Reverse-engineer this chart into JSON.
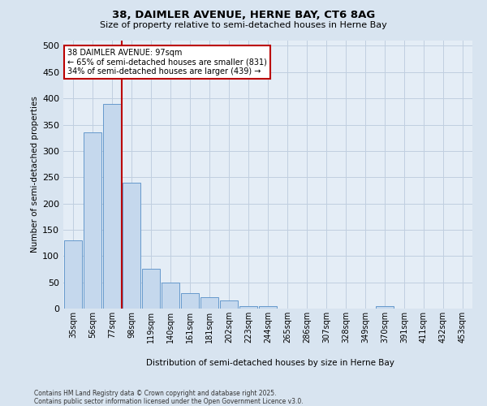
{
  "title_line1": "38, DAIMLER AVENUE, HERNE BAY, CT6 8AG",
  "title_line2": "Size of property relative to semi-detached houses in Herne Bay",
  "xlabel": "Distribution of semi-detached houses by size in Herne Bay",
  "ylabel": "Number of semi-detached properties",
  "footnote": "Contains HM Land Registry data © Crown copyright and database right 2025.\nContains public sector information licensed under the Open Government Licence v3.0.",
  "bar_categories": [
    "35sqm",
    "56sqm",
    "77sqm",
    "98sqm",
    "119sqm",
    "140sqm",
    "161sqm",
    "181sqm",
    "202sqm",
    "223sqm",
    "244sqm",
    "265sqm",
    "286sqm",
    "307sqm",
    "328sqm",
    "349sqm",
    "370sqm",
    "391sqm",
    "411sqm",
    "432sqm",
    "453sqm"
  ],
  "bar_values": [
    130,
    335,
    390,
    240,
    75,
    50,
    30,
    22,
    15,
    5,
    5,
    0,
    0,
    0,
    0,
    0,
    5,
    0,
    0,
    0,
    0
  ],
  "bar_color": "#c5d8ed",
  "bar_edge_color": "#6699cc",
  "vline_color": "#bb0000",
  "vline_x": 2.5,
  "property_label": "38 DAIMLER AVENUE: 97sqm",
  "pct_smaller": 65,
  "n_smaller": 831,
  "pct_larger": 34,
  "n_larger": 439,
  "ylim_max": 510,
  "yticks": [
    0,
    50,
    100,
    150,
    200,
    250,
    300,
    350,
    400,
    450,
    500
  ],
  "bg_color": "#d8e4f0",
  "plot_bg_color": "#e4edf6",
  "grid_color": "#c0cfe0"
}
